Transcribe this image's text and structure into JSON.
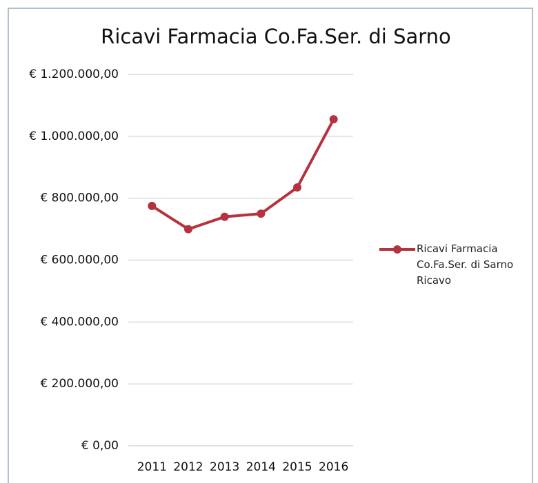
{
  "chart_data": {
    "type": "line",
    "title": "Ricavi Farmacia Co.Fa.Ser. di Sarno",
    "categories": [
      "2011",
      "2012",
      "2013",
      "2014",
      "2015",
      "2016"
    ],
    "series": [
      {
        "name": "Ricavi Farmacia Co.Fa.Ser. di Sarno Ricavo",
        "color": "#b5323f",
        "values": [
          775000,
          700000,
          740000,
          750000,
          835000,
          1055000
        ]
      }
    ],
    "ylim": [
      0,
      1200000
    ],
    "yticks": [
      {
        "value": 0,
        "label": "€ 0,00"
      },
      {
        "value": 200000,
        "label": "€ 200.000,00"
      },
      {
        "value": 400000,
        "label": "€ 400.000,00"
      },
      {
        "value": 600000,
        "label": "€ 600.000,00"
      },
      {
        "value": 800000,
        "label": "€ 800.000,00"
      },
      {
        "value": 1000000,
        "label": "€ 1.000.000,00"
      },
      {
        "value": 1200000,
        "label": "€ 1.200.000,00"
      }
    ],
    "grid": true,
    "legend": "right"
  }
}
